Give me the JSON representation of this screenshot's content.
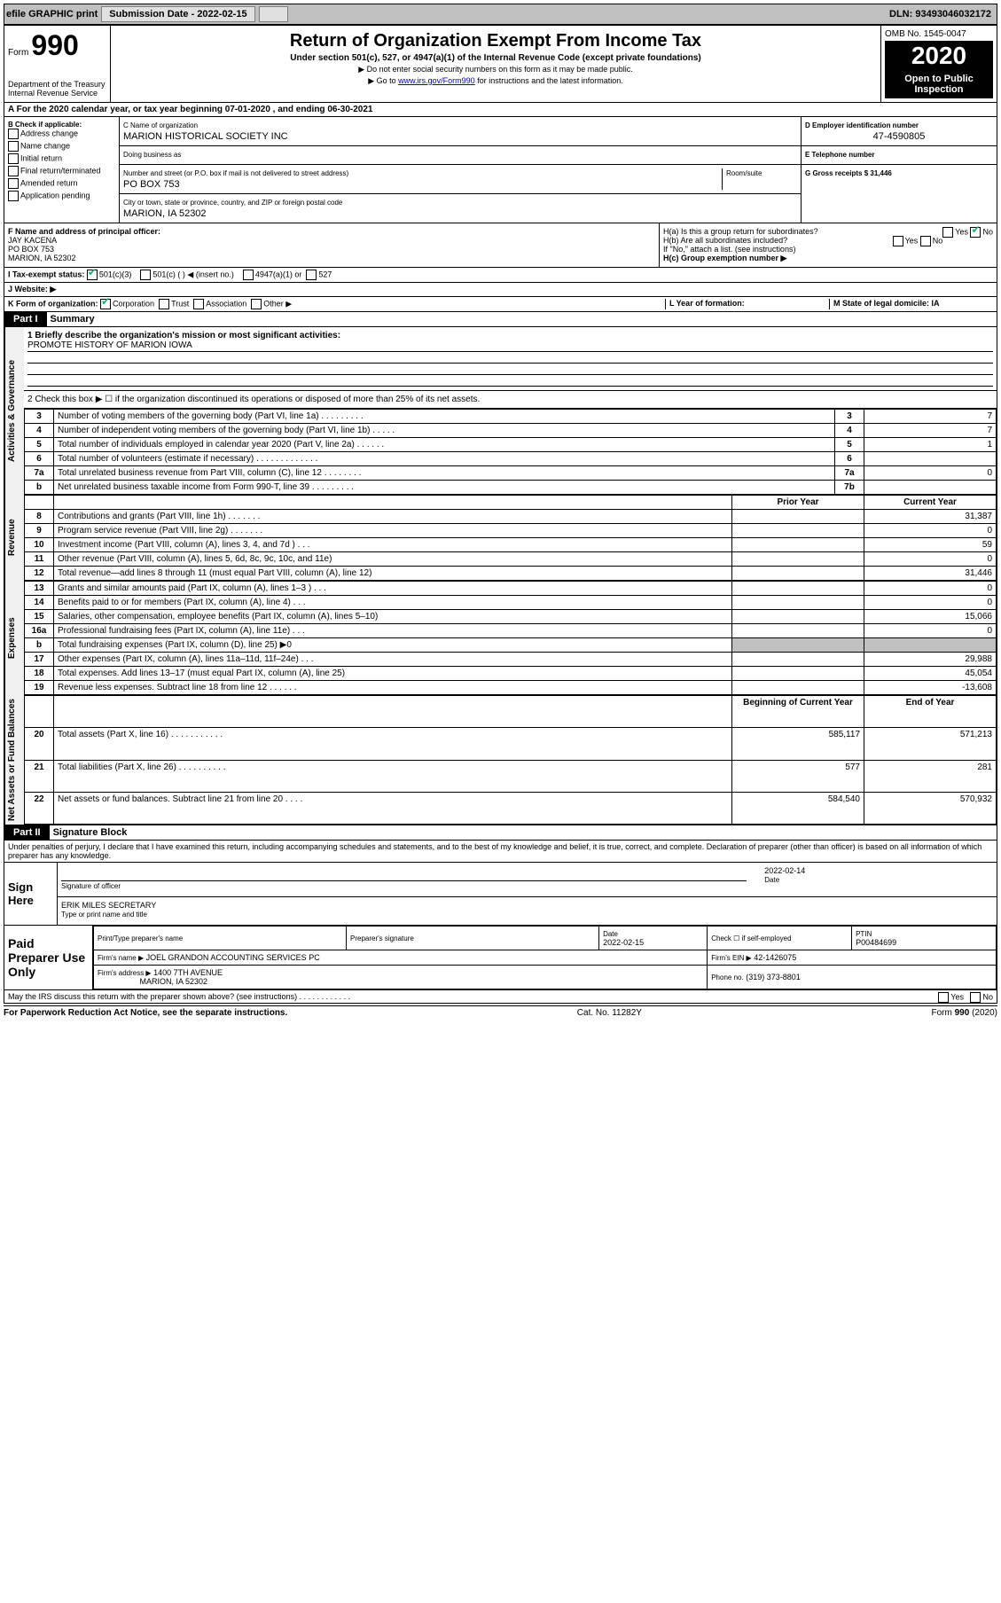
{
  "topbar": {
    "efile_label": "efile GRAPHIC print",
    "submission_date_label": "Submission Date - 2022-02-15",
    "dln_label": "DLN: 93493046032172"
  },
  "header": {
    "form_label": "Form",
    "form_number": "990",
    "dept": "Department of the Treasury\nInternal Revenue Service",
    "title": "Return of Organization Exempt From Income Tax",
    "subtitle": "Under section 501(c), 527, or 4947(a)(1) of the Internal Revenue Code (except private foundations)",
    "note1": "Do not enter social security numbers on this form as it may be made public.",
    "note2_prefix": "Go to ",
    "note2_link": "www.irs.gov/Form990",
    "note2_suffix": " for instructions and the latest information.",
    "omb": "OMB No. 1545-0047",
    "year": "2020",
    "open": "Open to Public Inspection"
  },
  "rowA": "A For the 2020 calendar year, or tax year beginning 07-01-2020   , and ending 06-30-2021",
  "sectionB": {
    "label": "B Check if applicable:",
    "opts": [
      "Address change",
      "Name change",
      "Initial return",
      "Final return/terminated",
      "Amended return",
      "Application pending"
    ]
  },
  "sectionC": {
    "name_label": "C Name of organization",
    "name": "MARION HISTORICAL SOCIETY INC",
    "dba_label": "Doing business as",
    "dba": "",
    "street_label": "Number and street (or P.O. box if mail is not delivered to street address)",
    "room_label": "Room/suite",
    "street": "PO BOX 753",
    "city_label": "City or town, state or province, country, and ZIP or foreign postal code",
    "city": "MARION, IA  52302"
  },
  "sectionD": {
    "label": "D Employer identification number",
    "ein": "47-4590805"
  },
  "sectionE": {
    "label": "E Telephone number",
    "value": ""
  },
  "sectionG": {
    "label": "G Gross receipts $",
    "value": "31,446"
  },
  "sectionF": {
    "label": "F Name and address of principal officer:",
    "name": "JAY KACENA",
    "street": "PO BOX 753",
    "city": "MARION, IA  52302"
  },
  "sectionH": {
    "ha": "H(a)  Is this a group return for subordinates?",
    "ha_yes": "Yes",
    "ha_no": "No",
    "ha_checked": "No",
    "hb": "H(b)  Are all subordinates included?",
    "hb_yes": "Yes",
    "hb_no": "No",
    "hb_note": "If \"No,\" attach a list. (see instructions)",
    "hc": "H(c)  Group exemption number ▶"
  },
  "rowI": {
    "label": "I  Tax-exempt status:",
    "o1": "501(c)(3)",
    "o1_checked": true,
    "o2": "501(c) (   ) ◀ (insert no.)",
    "o3": "4947(a)(1) or",
    "o4": "527"
  },
  "rowJ": {
    "label": "J  Website: ▶"
  },
  "rowK": {
    "label": "K Form of organization:",
    "o1": "Corporation",
    "o1_checked": true,
    "o2": "Trust",
    "o3": "Association",
    "o4": "Other ▶"
  },
  "rowL": {
    "label": "L Year of formation:",
    "value": ""
  },
  "rowM": {
    "label": "M State of legal domicile: IA"
  },
  "partI": {
    "header": "Part I",
    "title": "Summary",
    "side_gov": "Activities & Governance",
    "side_rev": "Revenue",
    "side_exp": "Expenses",
    "side_net": "Net Assets or Fund Balances",
    "line1_label": "1  Briefly describe the organization's mission or most significant activities:",
    "line1_value": "PROMOTE HISTORY OF MARION IOWA",
    "line2": "2   Check this box ▶ ☐ if the organization discontinued its operations or disposed of more than 25% of its net assets.",
    "col_prior": "Prior Year",
    "col_current": "Current Year",
    "col_boy": "Beginning of Current Year",
    "col_eoy": "End of Year",
    "rows_gov": [
      {
        "n": "3",
        "d": "Number of voting members of the governing body (Part VI, line 1a)   .   .   .   .   .   .   .   .   .",
        "rn": "3",
        "v": "7"
      },
      {
        "n": "4",
        "d": "Number of independent voting members of the governing body (Part VI, line 1b)   .   .   .   .   .",
        "rn": "4",
        "v": "7"
      },
      {
        "n": "5",
        "d": "Total number of individuals employed in calendar year 2020 (Part V, line 2a)   .   .   .   .   .   .",
        "rn": "5",
        "v": "1"
      },
      {
        "n": "6",
        "d": "Total number of volunteers (estimate if necessary)   .   .   .   .   .   .   .   .   .   .   .   .   .",
        "rn": "6",
        "v": ""
      },
      {
        "n": "7a",
        "d": "Total unrelated business revenue from Part VIII, column (C), line 12   .   .   .   .   .   .   .   .",
        "rn": "7a",
        "v": "0"
      },
      {
        "n": "b",
        "d": "Net unrelated business taxable income from Form 990-T, line 39   .   .   .   .   .   .   .   .   .",
        "rn": "7b",
        "v": ""
      }
    ],
    "rows_rev": [
      {
        "n": "8",
        "d": "Contributions and grants (Part VIII, line 1h)   .   .   .   .   .   .   .",
        "p": "",
        "c": "31,387"
      },
      {
        "n": "9",
        "d": "Program service revenue (Part VIII, line 2g)   .   .   .   .   .   .   .",
        "p": "",
        "c": "0"
      },
      {
        "n": "10",
        "d": "Investment income (Part VIII, column (A), lines 3, 4, and 7d )   .   .   .",
        "p": "",
        "c": "59"
      },
      {
        "n": "11",
        "d": "Other revenue (Part VIII, column (A), lines 5, 6d, 8c, 9c, 10c, and 11e)",
        "p": "",
        "c": "0"
      },
      {
        "n": "12",
        "d": "Total revenue—add lines 8 through 11 (must equal Part VIII, column (A), line 12)",
        "p": "",
        "c": "31,446"
      }
    ],
    "rows_exp": [
      {
        "n": "13",
        "d": "Grants and similar amounts paid (Part IX, column (A), lines 1–3 )   .   .   .",
        "p": "",
        "c": "0"
      },
      {
        "n": "14",
        "d": "Benefits paid to or for members (Part IX, column (A), line 4)   .   .   .",
        "p": "",
        "c": "0"
      },
      {
        "n": "15",
        "d": "Salaries, other compensation, employee benefits (Part IX, column (A), lines 5–10)",
        "p": "",
        "c": "15,066"
      },
      {
        "n": "16a",
        "d": "Professional fundraising fees (Part IX, column (A), line 11e)   .   .   .",
        "p": "",
        "c": "0"
      },
      {
        "n": "b",
        "d": "Total fundraising expenses (Part IX, column (D), line 25) ▶0",
        "p": "shaded",
        "c": "shaded"
      },
      {
        "n": "17",
        "d": "Other expenses (Part IX, column (A), lines 11a–11d, 11f–24e)   .   .   .",
        "p": "",
        "c": "29,988"
      },
      {
        "n": "18",
        "d": "Total expenses. Add lines 13–17 (must equal Part IX, column (A), line 25)",
        "p": "",
        "c": "45,054"
      },
      {
        "n": "19",
        "d": "Revenue less expenses. Subtract line 18 from line 12   .   .   .   .   .   .",
        "p": "",
        "c": "-13,608"
      }
    ],
    "rows_net": [
      {
        "n": "20",
        "d": "Total assets (Part X, line 16)   .   .   .   .   .   .   .   .   .   .   .",
        "p": "585,117",
        "c": "571,213"
      },
      {
        "n": "21",
        "d": "Total liabilities (Part X, line 26)   .   .   .   .   .   .   .   .   .   .",
        "p": "577",
        "c": "281"
      },
      {
        "n": "22",
        "d": "Net assets or fund balances. Subtract line 21 from line 20   .   .   .   .",
        "p": "584,540",
        "c": "570,932"
      }
    ]
  },
  "partII": {
    "header": "Part II",
    "title": "Signature Block",
    "perjury": "Under penalties of perjury, I declare that I have examined this return, including accompanying schedules and statements, and to the best of my knowledge and belief, it is true, correct, and complete. Declaration of preparer (other than officer) is based on all information of which preparer has any knowledge.",
    "sign_here": "Sign Here",
    "sig_officer_lbl": "Signature of officer",
    "sig_date_lbl": "Date",
    "sig_date": "2022-02-14",
    "officer_name": "ERIK MILES SECRETARY",
    "officer_title_lbl": "Type or print name and title",
    "paid_lbl": "Paid Preparer Use Only",
    "prep_name_lbl": "Print/Type preparer's name",
    "prep_sig_lbl": "Preparer's signature",
    "prep_date_lbl": "Date",
    "prep_date": "2022-02-15",
    "check_if_lbl": "Check ☐ if self-employed",
    "ptin_lbl": "PTIN",
    "ptin": "P00484699",
    "firm_name_lbl": "Firm's name    ▶",
    "firm_name": "JOEL GRANDON ACCOUNTING SERVICES PC",
    "firm_ein_lbl": "Firm's EIN ▶",
    "firm_ein": "42-1426075",
    "firm_addr_lbl": "Firm's address ▶",
    "firm_addr1": "1400 7TH AVENUE",
    "firm_addr2": "MARION, IA  52302",
    "phone_lbl": "Phone no.",
    "phone": "(319) 373-8801",
    "may_discuss": "May the IRS discuss this return with the preparer shown above? (see instructions)   .   .   .   .   .   .   .   .   .   .   .   .",
    "yes": "Yes",
    "no": "No"
  },
  "footer": {
    "left": "For Paperwork Reduction Act Notice, see the separate instructions.",
    "center": "Cat. No. 11282Y",
    "right": "Form 990 (2020)"
  }
}
